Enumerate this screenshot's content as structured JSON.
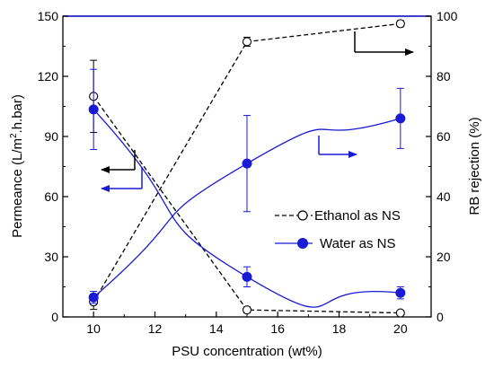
{
  "chart_data": {
    "type": "line",
    "xlabel": "PSU concentration (wt%)",
    "ylabel_left": "Permeance (L/m2.h.bar)",
    "ylabel_left_parts": [
      "Permeance (L/m",
      "2",
      ".h.bar)"
    ],
    "ylabel_right": "RB rejection (%)",
    "xlim": [
      9,
      21
    ],
    "ylim_left": [
      0,
      150
    ],
    "ylim_right": [
      0,
      100
    ],
    "x_ticks": [
      10,
      12,
      14,
      16,
      18,
      20
    ],
    "y_left_ticks": [
      0,
      30,
      60,
      90,
      120,
      150
    ],
    "y_right_ticks": [
      0,
      20,
      40,
      60,
      80,
      100
    ],
    "grid": false,
    "legend_placement": "center-right",
    "legend": [
      {
        "label": "Ethanol as NS",
        "style": "dashed black line, open circle markers"
      },
      {
        "label": "Water as NS",
        "style": "solid blue line, filled blue circle markers"
      }
    ],
    "series": [
      {
        "name": "Ethanol as NS",
        "quantity": "permeance",
        "axis": "left",
        "color": "#000000",
        "marker": "open-circle",
        "line": "dashed",
        "x": [
          10,
          15,
          20
        ],
        "y": [
          110,
          3.5,
          2
        ],
        "error": [
          18,
          1.5,
          1
        ]
      },
      {
        "name": "Ethanol as NS",
        "quantity": "rejection",
        "axis": "right",
        "color": "#000000",
        "marker": "open-circle",
        "line": "dashed",
        "x": [
          10,
          15,
          20
        ],
        "y": [
          5,
          91.5,
          97.5
        ],
        "error": [
          2.5,
          1.5,
          1
        ]
      },
      {
        "name": "Water as NS",
        "quantity": "permeance",
        "axis": "left",
        "color": "#1a1ad6",
        "marker": "filled-circle",
        "line": "solid-smooth",
        "x": [
          10,
          15,
          20
        ],
        "y": [
          103.5,
          20,
          12
        ],
        "error": [
          20,
          5,
          3
        ]
      },
      {
        "name": "Water as NS",
        "quantity": "rejection",
        "axis": "right",
        "color": "#1a1ad6",
        "marker": "filled-circle",
        "line": "solid-smooth",
        "x": [
          10,
          15,
          20
        ],
        "y": [
          6.5,
          51,
          66
        ],
        "error": [
          2,
          16,
          10
        ]
      }
    ],
    "annotations": [
      {
        "type": "arrow",
        "color": "#000000",
        "series": "Ethanol as NS permeance",
        "points_to": "left-axis"
      },
      {
        "type": "arrow",
        "color": "#1a1ad6",
        "series": "Water as NS permeance",
        "points_to": "left-axis"
      },
      {
        "type": "arrow",
        "color": "#000000",
        "series": "Ethanol as NS rejection",
        "points_to": "right-axis"
      },
      {
        "type": "arrow",
        "color": "#1a1ad6",
        "series": "Water as NS rejection",
        "points_to": "right-axis"
      }
    ]
  }
}
